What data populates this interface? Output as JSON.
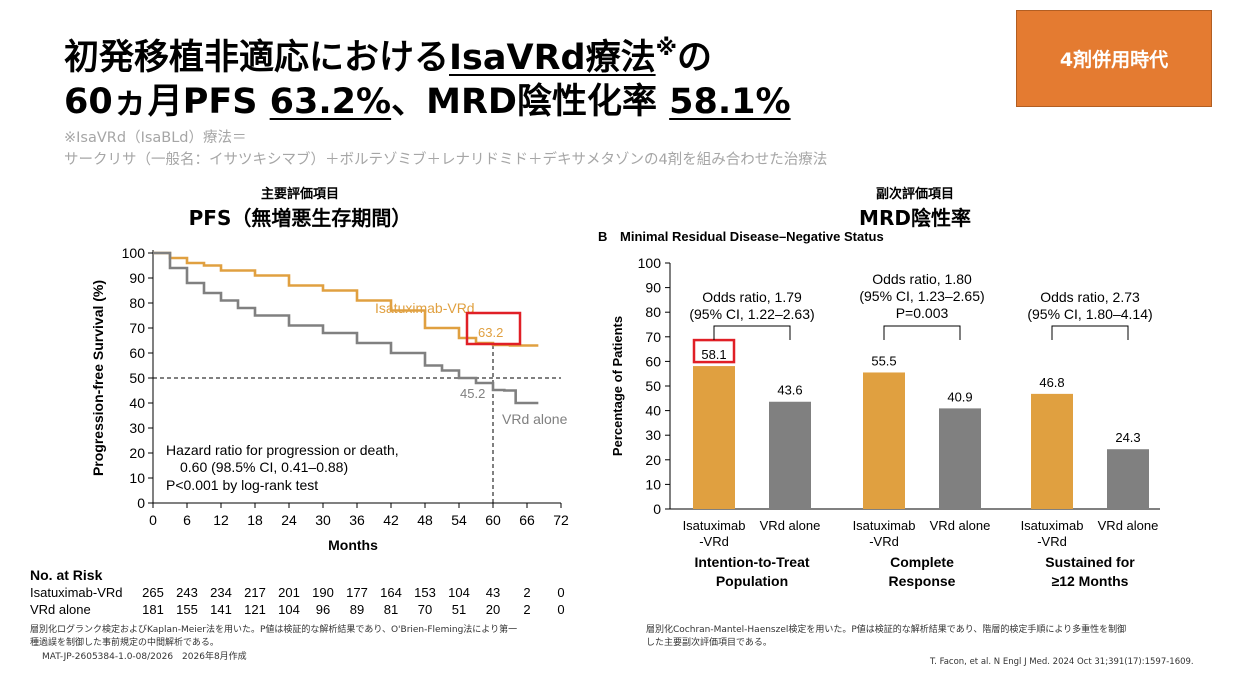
{
  "title": {
    "line1_pre": "初発移植非適応における",
    "line1_u": "IsaVRd療法",
    "line1_sup": "※",
    "line1_post": "の",
    "line2_pre": "60ヵ月PFS ",
    "line2_u1": "63.2%",
    "line2_mid": "、MRD陰性化率 ",
    "line2_u2": "58.1%"
  },
  "notes": {
    "line1": "※IsaVRd（IsaBLd）療法＝",
    "line2": "サークリサ（一般名：イサツキシマブ）＋ボルテゾミブ＋レナリドミド＋デキサメタゾンの4剤を組み合わせた治療法"
  },
  "badge": "4剤併用時代",
  "pfs_header": {
    "small": "主要評価項目",
    "big": "PFS（無増悪生存期間）"
  },
  "mrd_header": {
    "small": "副次評価項目",
    "big": "MRD陰性率"
  },
  "colors": {
    "isa": "#e0a040",
    "vrd": "#808080",
    "highlight": "#e01f26",
    "badge": "#e47b31"
  },
  "chart_data": [
    {
      "type": "line",
      "title": "",
      "xlabel": "Months",
      "ylabel": "Progression-free Survival (%)",
      "xlim": [
        0,
        72
      ],
      "ylim": [
        0,
        100
      ],
      "xticks": [
        0,
        6,
        12,
        18,
        24,
        30,
        36,
        42,
        48,
        54,
        60,
        66,
        72
      ],
      "yticks": [
        0,
        10,
        20,
        30,
        40,
        50,
        60,
        70,
        80,
        90,
        100
      ],
      "series": [
        {
          "name": "Isatuximab-VRd",
          "x": [
            0,
            3,
            6,
            9,
            12,
            18,
            24,
            30,
            36,
            42,
            48,
            54,
            57,
            60,
            63,
            66,
            68
          ],
          "y": [
            100,
            98,
            96,
            95,
            93,
            91,
            87,
            85,
            81,
            77,
            70,
            66,
            64,
            63.2,
            63,
            63,
            63
          ]
        },
        {
          "name": "VRd alone",
          "x": [
            0,
            3,
            6,
            9,
            12,
            15,
            18,
            24,
            30,
            36,
            42,
            48,
            51,
            54,
            57,
            60,
            62,
            64,
            66,
            68
          ],
          "y": [
            100,
            94,
            88,
            84,
            81,
            78,
            75,
            71,
            68,
            64,
            60,
            55,
            53,
            50,
            48,
            45.2,
            45,
            40,
            40,
            40
          ]
        }
      ],
      "annotations": {
        "isa_label": "Isatuximab-VRd",
        "vrd_label": "VRd alone",
        "isa_value": "63.2",
        "vrd_value": "45.2",
        "hr_line1": "Hazard ratio for progression or death,",
        "hr_line2": "0.60 (98.5% CI, 0.41–0.88)",
        "hr_line3": "P<0.001 by log-rank test"
      },
      "reference_line_y": 50,
      "reference_line_x": 60,
      "risk_table": {
        "title": "No. at Risk",
        "rows": [
          {
            "name": "Isatuximab-VRd",
            "values": [
              "265",
              "243",
              "234",
              "217",
              "201",
              "190",
              "177",
              "164",
              "153",
              "104",
              "43",
              "2",
              "0"
            ]
          },
          {
            "name": "VRd alone",
            "values": [
              "181",
              "155",
              "141",
              "121",
              "104",
              "96",
              "89",
              "81",
              "70",
              "51",
              "20",
              "2",
              "0"
            ]
          }
        ]
      }
    },
    {
      "type": "bar",
      "title": "Minimal Residual Disease–Negative Status",
      "panel_letter": "B",
      "xlabel": "",
      "ylabel": "Percentage of Patients",
      "ylim": [
        0,
        100
      ],
      "yticks": [
        0,
        10,
        20,
        30,
        40,
        50,
        60,
        70,
        80,
        90,
        100
      ],
      "groups": [
        {
          "label_line1": "Intention-to-Treat",
          "label_line2": "Population",
          "odds_line1": "Odds ratio, 1.79",
          "odds_line2": "(95% CI, 1.22–2.63)",
          "odds_line3": ""
        },
        {
          "label_line1": "Complete",
          "label_line2": "Response",
          "odds_line1": "Odds ratio, 1.80",
          "odds_line2": "(95% CI, 1.23–2.65)",
          "odds_line3": "P=0.003"
        },
        {
          "label_line1": "Sustained for",
          "label_line2": "≥12 Months",
          "odds_line1": "Odds ratio, 2.73",
          "odds_line2": "(95% CI, 1.80–4.14)",
          "odds_line3": ""
        }
      ],
      "bar_labels": {
        "isa_line1": "Isatuximab",
        "isa_line2": "-VRd",
        "vrd": "VRd alone"
      },
      "series": [
        {
          "name": "Isatuximab-VRd",
          "values": [
            58.1,
            55.5,
            46.8
          ]
        },
        {
          "name": "VRd alone",
          "values": [
            43.6,
            40.9,
            24.3
          ]
        }
      ],
      "value_labels": {
        "isa": [
          "58.1",
          "55.5",
          "46.8"
        ],
        "vrd": [
          "43.6",
          "40.9",
          "24.3"
        ]
      }
    }
  ],
  "footnotes": {
    "left1": "層別化ログランク検定およびKaplan-Meier法を用いた。P値は検証的な解析結果であり、O'Brien-Fleming法により第一",
    "left2": "種過誤を制御した事前規定の中間解析である。",
    "code": "MAT-JP-2605384-1.0-08/2026　2026年8月作成",
    "right1": "層別化Cochran-Mantel-Haenszel検定を用いた。P値は検証的な解析結果であり、階層的検定手順により多重性を制御",
    "right2": "した主要副次評価項目である。",
    "citation": "T. Facon, et al. N Engl J Med. 2024 Oct 31;391(17):1597-1609."
  }
}
